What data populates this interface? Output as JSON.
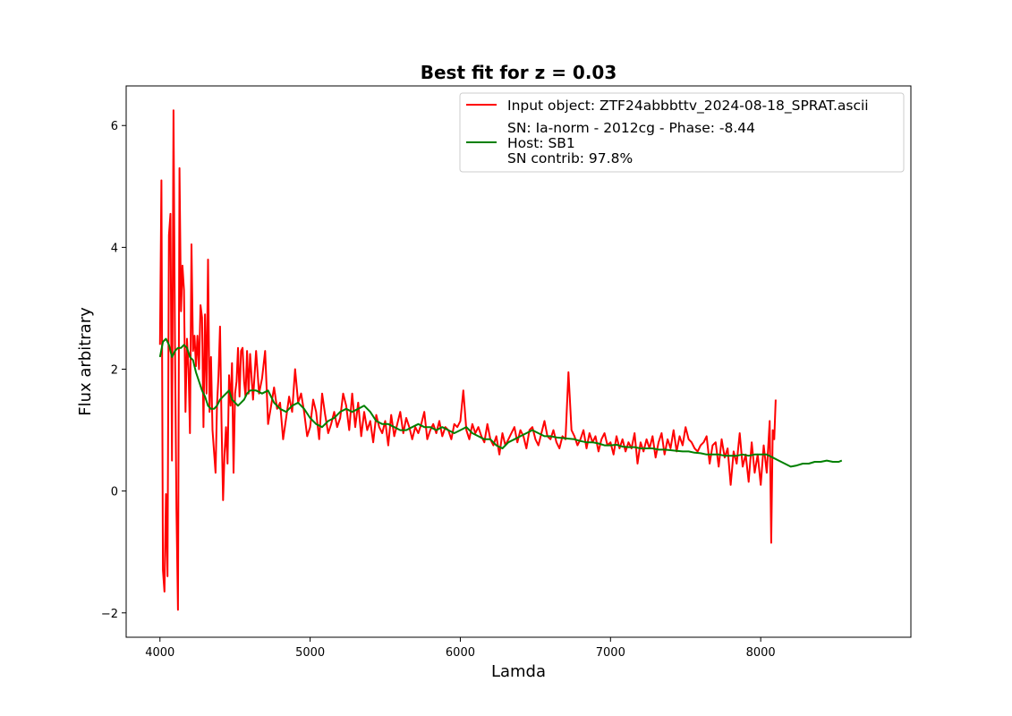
{
  "chart_data": {
    "type": "line",
    "title": "Best fit for z = 0.03",
    "xlabel": "Lamda",
    "ylabel": "Flux arbitrary",
    "xlim": [
      3775,
      9000
    ],
    "ylim": [
      -2.4,
      6.65
    ],
    "xticks": [
      4000,
      5000,
      6000,
      7000,
      8000
    ],
    "yticks": [
      -2,
      0,
      2,
      4,
      6
    ],
    "xtick_labels": [
      "4000",
      "5000",
      "6000",
      "7000",
      "8000"
    ],
    "ytick_labels": [
      "−2",
      "0",
      "2",
      "4",
      "6"
    ],
    "grid": false,
    "legend_position": "upper right",
    "series": [
      {
        "name": "Input object: ZTF24abbbttv_2024-08-18_SPRAT.ascii",
        "color": "#ff0000",
        "x": [
          4000,
          4010,
          4020,
          4030,
          4040,
          4050,
          4060,
          4070,
          4080,
          4090,
          4100,
          4110,
          4120,
          4130,
          4140,
          4150,
          4160,
          4170,
          4180,
          4190,
          4200,
          4210,
          4220,
          4230,
          4240,
          4250,
          4260,
          4270,
          4280,
          4290,
          4300,
          4310,
          4320,
          4330,
          4340,
          4350,
          4360,
          4370,
          4380,
          4390,
          4400,
          4410,
          4420,
          4430,
          4440,
          4450,
          4460,
          4470,
          4480,
          4490,
          4500,
          4510,
          4520,
          4530,
          4540,
          4550,
          4560,
          4570,
          4580,
          4590,
          4600,
          4620,
          4640,
          4660,
          4680,
          4700,
          4720,
          4740,
          4760,
          4780,
          4800,
          4820,
          4840,
          4860,
          4880,
          4900,
          4920,
          4940,
          4960,
          4980,
          5000,
          5020,
          5040,
          5060,
          5080,
          5100,
          5120,
          5140,
          5160,
          5180,
          5200,
          5220,
          5240,
          5260,
          5280,
          5300,
          5320,
          5340,
          5360,
          5380,
          5400,
          5420,
          5440,
          5460,
          5480,
          5500,
          5520,
          5540,
          5560,
          5580,
          5600,
          5620,
          5640,
          5660,
          5680,
          5700,
          5720,
          5740,
          5760,
          5780,
          5800,
          5820,
          5840,
          5860,
          5880,
          5900,
          5920,
          5940,
          5960,
          5980,
          6000,
          6020,
          6040,
          6060,
          6080,
          6100,
          6120,
          6140,
          6160,
          6180,
          6200,
          6220,
          6240,
          6260,
          6280,
          6300,
          6320,
          6340,
          6360,
          6380,
          6400,
          6420,
          6440,
          6460,
          6480,
          6500,
          6520,
          6540,
          6560,
          6580,
          6600,
          6620,
          6640,
          6660,
          6680,
          6700,
          6720,
          6740,
          6760,
          6780,
          6800,
          6820,
          6840,
          6860,
          6880,
          6900,
          6920,
          6940,
          6960,
          6980,
          7000,
          7020,
          7040,
          7060,
          7080,
          7100,
          7120,
          7140,
          7160,
          7180,
          7200,
          7220,
          7240,
          7260,
          7280,
          7300,
          7320,
          7340,
          7360,
          7380,
          7400,
          7420,
          7440,
          7460,
          7480,
          7500,
          7520,
          7540,
          7560,
          7580,
          7600,
          7620,
          7640,
          7660,
          7680,
          7700,
          7720,
          7740,
          7760,
          7780,
          7800,
          7820,
          7840,
          7860,
          7880,
          7900,
          7920,
          7940,
          7960,
          7980,
          8000,
          8020,
          8040,
          8060,
          8070,
          8080,
          8090,
          8100
        ],
        "y": [
          2.4,
          5.1,
          -1.3,
          -1.65,
          -0.05,
          -1.4,
          4.2,
          4.55,
          0.5,
          6.25,
          2.3,
          -0.3,
          -1.95,
          5.3,
          2.95,
          3.7,
          3.3,
          1.3,
          2.5,
          2.0,
          0.95,
          4.05,
          2.3,
          2.55,
          2.05,
          2.55,
          2.0,
          3.05,
          2.85,
          1.05,
          2.9,
          1.6,
          3.8,
          1.3,
          2.2,
          1.0,
          0.65,
          0.3,
          1.4,
          1.9,
          2.7,
          1.1,
          -0.15,
          0.6,
          1.05,
          0.45,
          1.9,
          1.4,
          2.1,
          0.3,
          1.6,
          1.8,
          2.35,
          1.55,
          2.3,
          2.35,
          1.8,
          1.55,
          2.3,
          1.6,
          2.25,
          1.5,
          2.3,
          1.6,
          1.85,
          2.3,
          1.1,
          1.4,
          1.7,
          1.35,
          1.45,
          0.85,
          1.2,
          1.55,
          1.3,
          2.0,
          1.45,
          1.6,
          1.3,
          0.9,
          1.05,
          1.5,
          1.3,
          0.85,
          1.6,
          1.25,
          0.95,
          1.1,
          1.3,
          1.05,
          1.2,
          1.6,
          1.4,
          1.0,
          1.6,
          1.05,
          1.45,
          0.9,
          1.3,
          1.0,
          1.15,
          0.8,
          1.25,
          1.05,
          0.95,
          1.15,
          0.75,
          1.25,
          0.9,
          1.1,
          1.3,
          0.95,
          1.2,
          1.05,
          0.85,
          1.05,
          0.95,
          1.1,
          1.3,
          0.85,
          1.0,
          1.1,
          0.95,
          1.15,
          0.9,
          1.05,
          1.0,
          0.85,
          1.1,
          1.05,
          1.15,
          1.65,
          1.0,
          0.85,
          1.1,
          0.95,
          1.05,
          0.9,
          0.8,
          1.1,
          0.85,
          0.75,
          0.9,
          0.6,
          0.95,
          0.75,
          0.85,
          0.95,
          1.05,
          0.8,
          1.0,
          0.9,
          0.7,
          1.0,
          1.05,
          0.85,
          0.75,
          0.95,
          1.15,
          0.9,
          0.85,
          1.0,
          0.8,
          0.7,
          0.9,
          0.85,
          1.95,
          1.0,
          0.9,
          0.75,
          0.85,
          1.0,
          0.7,
          0.95,
          0.8,
          0.9,
          0.65,
          0.85,
          0.95,
          0.75,
          0.8,
          0.6,
          0.9,
          0.7,
          0.85,
          0.65,
          0.8,
          0.7,
          0.95,
          0.45,
          0.8,
          0.65,
          0.85,
          0.7,
          0.9,
          0.55,
          0.8,
          0.95,
          0.6,
          0.85,
          0.7,
          1.0,
          0.65,
          0.9,
          0.75,
          1.05,
          0.85,
          0.8,
          0.7,
          0.65,
          0.75,
          0.8,
          0.9,
          0.45,
          0.75,
          0.8,
          0.4,
          0.85,
          0.55,
          0.7,
          0.1,
          0.65,
          0.45,
          0.95,
          0.4,
          0.6,
          0.15,
          0.8,
          0.3,
          0.6,
          0.1,
          0.75,
          0.3,
          1.15,
          -0.85,
          1.0,
          0.85,
          1.5
        ]
      },
      {
        "name": "SN: Ia-norm - 2012cg - Phase:  -8.44\nHost: SB1\nSN contrib:  97.8%",
        "color": "#008000",
        "x": [
          4000,
          4020,
          4040,
          4060,
          4080,
          4100,
          4120,
          4140,
          4160,
          4180,
          4200,
          4220,
          4240,
          4260,
          4280,
          4300,
          4320,
          4340,
          4360,
          4380,
          4400,
          4420,
          4440,
          4460,
          4480,
          4500,
          4520,
          4540,
          4560,
          4580,
          4600,
          4640,
          4680,
          4720,
          4760,
          4800,
          4840,
          4880,
          4920,
          4960,
          5000,
          5040,
          5080,
          5120,
          5160,
          5200,
          5240,
          5280,
          5320,
          5360,
          5400,
          5440,
          5480,
          5520,
          5560,
          5600,
          5640,
          5680,
          5720,
          5760,
          5800,
          5840,
          5880,
          5920,
          5960,
          6000,
          6040,
          6080,
          6120,
          6160,
          6200,
          6240,
          6280,
          6320,
          6360,
          6400,
          6440,
          6480,
          6520,
          6560,
          6600,
          6640,
          6680,
          6720,
          6760,
          6800,
          6840,
          6880,
          6920,
          6960,
          7000,
          7040,
          7080,
          7120,
          7160,
          7200,
          7240,
          7280,
          7320,
          7360,
          7400,
          7440,
          7480,
          7520,
          7560,
          7600,
          7640,
          7680,
          7720,
          7760,
          7800,
          7840,
          7880,
          7920,
          7960,
          8000,
          8040,
          8080,
          8120,
          8160,
          8200,
          8240,
          8280,
          8320,
          8360,
          8400,
          8440,
          8480,
          8520,
          8540
        ],
        "y": [
          2.2,
          2.45,
          2.5,
          2.4,
          2.2,
          2.3,
          2.35,
          2.35,
          2.4,
          2.35,
          2.2,
          2.15,
          1.95,
          1.8,
          1.65,
          1.55,
          1.4,
          1.35,
          1.35,
          1.4,
          1.5,
          1.55,
          1.6,
          1.65,
          1.5,
          1.45,
          1.4,
          1.45,
          1.5,
          1.6,
          1.65,
          1.65,
          1.6,
          1.65,
          1.45,
          1.35,
          1.3,
          1.4,
          1.45,
          1.35,
          1.2,
          1.1,
          1.05,
          1.15,
          1.2,
          1.3,
          1.35,
          1.3,
          1.35,
          1.4,
          1.3,
          1.15,
          1.1,
          1.1,
          1.05,
          1.0,
          1.0,
          1.05,
          1.1,
          1.05,
          1.05,
          1.0,
          1.05,
          1.0,
          0.95,
          1.0,
          1.05,
          0.95,
          0.9,
          0.85,
          0.85,
          0.75,
          0.7,
          0.8,
          0.85,
          0.9,
          0.95,
          1.0,
          0.95,
          0.9,
          0.9,
          0.88,
          0.87,
          0.86,
          0.85,
          0.82,
          0.8,
          0.8,
          0.78,
          0.75,
          0.75,
          0.76,
          0.73,
          0.72,
          0.72,
          0.7,
          0.7,
          0.7,
          0.68,
          0.68,
          0.67,
          0.66,
          0.65,
          0.65,
          0.63,
          0.62,
          0.6,
          0.6,
          0.6,
          0.58,
          0.58,
          0.58,
          0.6,
          0.58,
          0.6,
          0.6,
          0.6,
          0.55,
          0.5,
          0.45,
          0.4,
          0.42,
          0.45,
          0.45,
          0.48,
          0.48,
          0.5,
          0.48,
          0.48,
          0.5
        ]
      }
    ]
  }
}
